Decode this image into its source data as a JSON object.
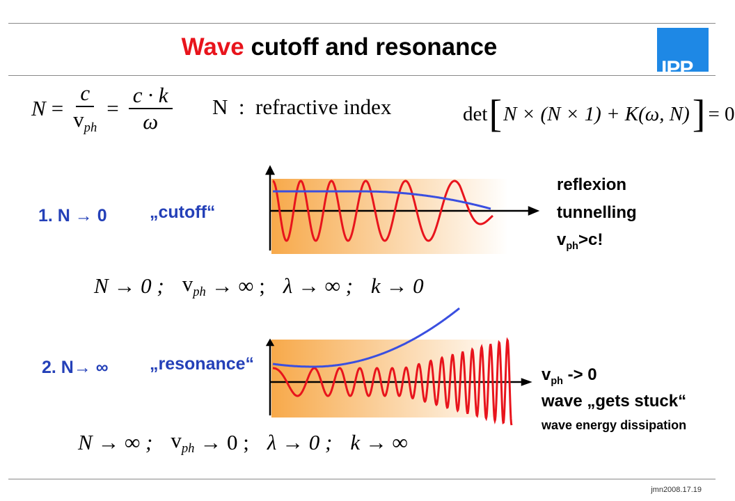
{
  "header": {
    "title_highlight": "Wave",
    "title_rest": "cutoff and resonance",
    "logo": "IPP"
  },
  "formulas": {
    "index": {
      "lhs": "N",
      "eq1": "=",
      "num1": "c",
      "den1_main": "v",
      "den1_sub": "ph",
      "eq2": "=",
      "num2": "c · k",
      "den2": "ω"
    },
    "definition": "N  :  refractive index",
    "dispersion": {
      "det": "det",
      "inner": "N × (N × 1) + K(ω, N)",
      "rhs": "= 0"
    }
  },
  "cutoff": {
    "label": "1. N → 0",
    "quote": "„cutoff“",
    "notes": [
      "reflexion",
      "tunnelling"
    ],
    "vph": {
      "main": "v",
      "sub": "ph",
      "rest": ">c!"
    },
    "limits": {
      "n": "N → 0 ;",
      "v_main": "v",
      "v_sub": "ph",
      "v_rest": "→ ∞ ;",
      "lambda": "λ → ∞ ;",
      "k": "k → 0"
    }
  },
  "resonance": {
    "label": "2. N→ ∞",
    "quote": "„resonance“",
    "vph": {
      "main": "v",
      "sub": "ph",
      "rest": "-> 0"
    },
    "notes": [
      "wave „gets stuck“",
      "wave energy dissipation"
    ],
    "limits": {
      "n": "N → ∞ ;",
      "v_main": "v",
      "v_sub": "ph",
      "v_rest": "→ 0 ;",
      "lambda": "λ → 0 ;",
      "k": "k → ∞"
    }
  },
  "footer": "jmn2008.17.19"
}
